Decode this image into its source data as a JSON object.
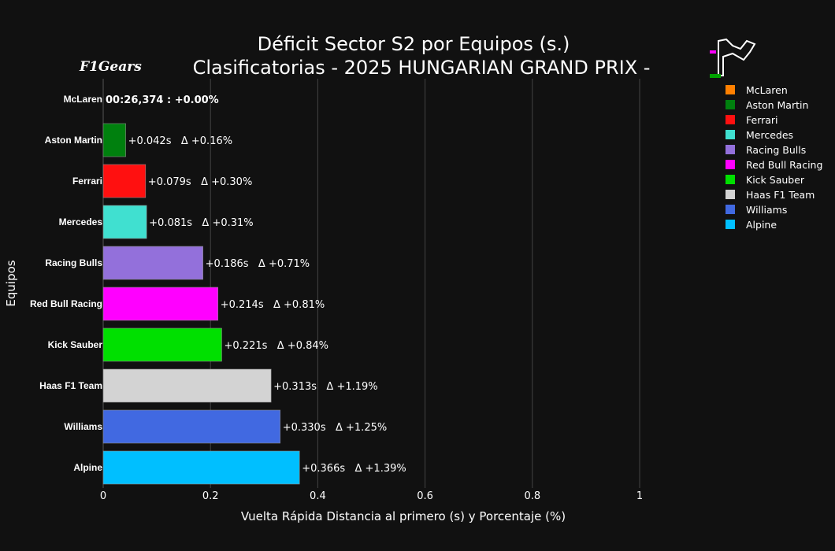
{
  "chart_data": {
    "type": "bar",
    "orientation": "horizontal",
    "title": "Déficit Sector S2 por Equipos (s.)",
    "subtitle": "Clasificatorias - 2025 HUNGARIAN GRAND PRIX -",
    "xlabel": "Vuelta Rápida Distancia al primero (s) y Porcentaje (%)",
    "ylabel": "Equipos",
    "xlim": [
      0,
      1
    ],
    "xticks": [
      0,
      0.2,
      0.4,
      0.6,
      0.8,
      1
    ],
    "xtick_labels": [
      "0",
      "0.2",
      "0.4",
      "0.6",
      "0.8",
      "1"
    ],
    "grid": true,
    "legend_position": "right",
    "categories": [
      "McLaren",
      "Aston Martin",
      "Ferrari",
      "Mercedes",
      "Racing Bulls",
      "Red Bull Racing",
      "Kick Sauber",
      "Haas F1 Team",
      "Williams",
      "Alpine"
    ],
    "values": [
      0,
      0.042,
      0.079,
      0.081,
      0.186,
      0.214,
      0.221,
      0.313,
      0.33,
      0.366
    ],
    "colors": [
      "#ff8000",
      "#00800e",
      "#ff1010",
      "#40e0d0",
      "#9370db",
      "#ff00ff",
      "#00e000",
      "#d3d3d3",
      "#4169e1",
      "#00bfff"
    ],
    "labels": [
      "00:26,374 : +0.00%",
      "+0.042s   Δ +0.16%",
      "+0.079s   Δ +0.30%",
      "+0.081s   Δ +0.31%",
      "+0.186s   Δ +0.71%",
      "+0.214s   Δ +0.81%",
      "+0.221s   Δ +0.84%",
      "+0.313s   Δ +1.19%",
      "+0.330s   Δ +1.25%",
      "+0.366s   Δ +1.39%"
    ],
    "legend": [
      "McLaren",
      "Aston Martin",
      "Ferrari",
      "Mercedes",
      "Racing Bulls",
      "Red Bull Racing",
      "Kick Sauber",
      "Haas F1 Team",
      "Williams",
      "Alpine"
    ]
  },
  "branding": {
    "logo_text": "F1Gears",
    "track_map_icon": "track-map-icon",
    "logo_icon": "f1gears-logo-icon"
  }
}
